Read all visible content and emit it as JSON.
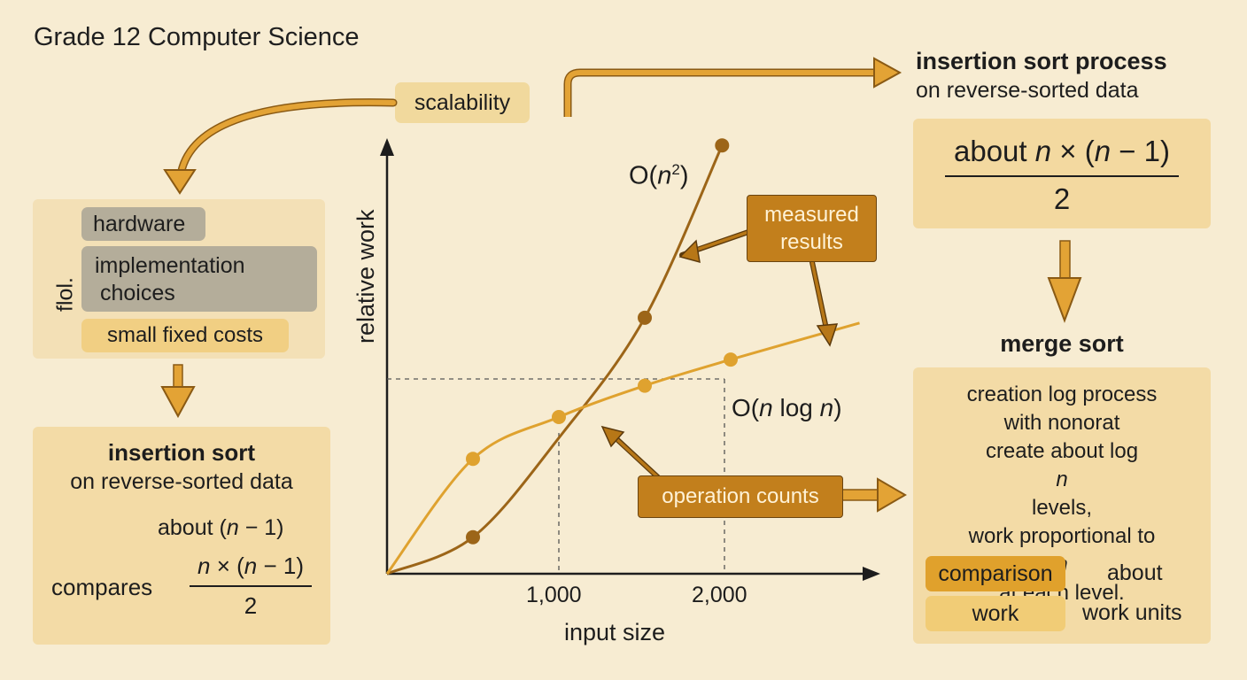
{
  "title": "Grade 12 Computer Science",
  "scalability_label": "scalability",
  "factors": {
    "side_label": "flol.",
    "items": [
      "hardware",
      "implementation choices",
      "small fixed costs"
    ],
    "hardware": "hardware",
    "implementation_line1": "implementation",
    "implementation_line2": "choices",
    "fixed_costs": "small fixed costs"
  },
  "insertion_left": {
    "title": "insertion sort",
    "subtitle": "on reverse-sorted data",
    "about_prefix": "about (",
    "about_var": "n",
    "about_suffix": " − 1)",
    "compares_label": "compares",
    "fraction_num_var1": "n",
    "fraction_num_mid": " × (",
    "fraction_num_var2": "n",
    "fraction_num_end": " − 1)",
    "fraction_den": "2"
  },
  "insertion_right": {
    "title": "insertion sort process",
    "subtitle": "on reverse-sorted data",
    "num_prefix": "about ",
    "num_var1": "n",
    "num_mid": " × (",
    "num_var2": "n",
    "num_end": " − 1)",
    "den": "2"
  },
  "merge": {
    "title": "merge sort",
    "line1": "creation log process",
    "line2": "with nonorat",
    "line3a": "create about log ",
    "line3var": "n",
    "line3b": " levels,",
    "line4a": "work proportional to ",
    "line4var": "n",
    "line5": "at each level.",
    "comparison_label": "comparison",
    "work_label": "work",
    "about_label": "about",
    "work_units_label": "work units"
  },
  "callouts": {
    "measured_line1": "measured",
    "measured_line2": "results",
    "operation_counts": "operation counts"
  },
  "chart_data": {
    "type": "line",
    "xlabel": "input size",
    "ylabel": "relative work",
    "x_ticks": [
      "1,000",
      "2,000"
    ],
    "series": [
      {
        "name": "O(n²)",
        "label_text": "O(",
        "label_var": "n",
        "label_sup": "2",
        "label_end": ")",
        "color": "#9c6518",
        "x": [
          0,
          500,
          1000,
          1500,
          1950
        ],
        "y": [
          0,
          0.07,
          0.26,
          0.49,
          0.82
        ],
        "marked_x": [
          500,
          1500,
          1950
        ]
      },
      {
        "name": "O(n log n)",
        "label_text": "O(",
        "label_var": "n",
        "label_mid": " log ",
        "label_var2": "n",
        "label_end": ")",
        "color": "#dfa22f",
        "x": [
          0,
          500,
          1000,
          1500,
          2000,
          2750
        ],
        "y": [
          0,
          0.22,
          0.3,
          0.36,
          0.41,
          0.48
        ],
        "marked_x": [
          500,
          1000,
          1500,
          2000
        ]
      }
    ]
  }
}
